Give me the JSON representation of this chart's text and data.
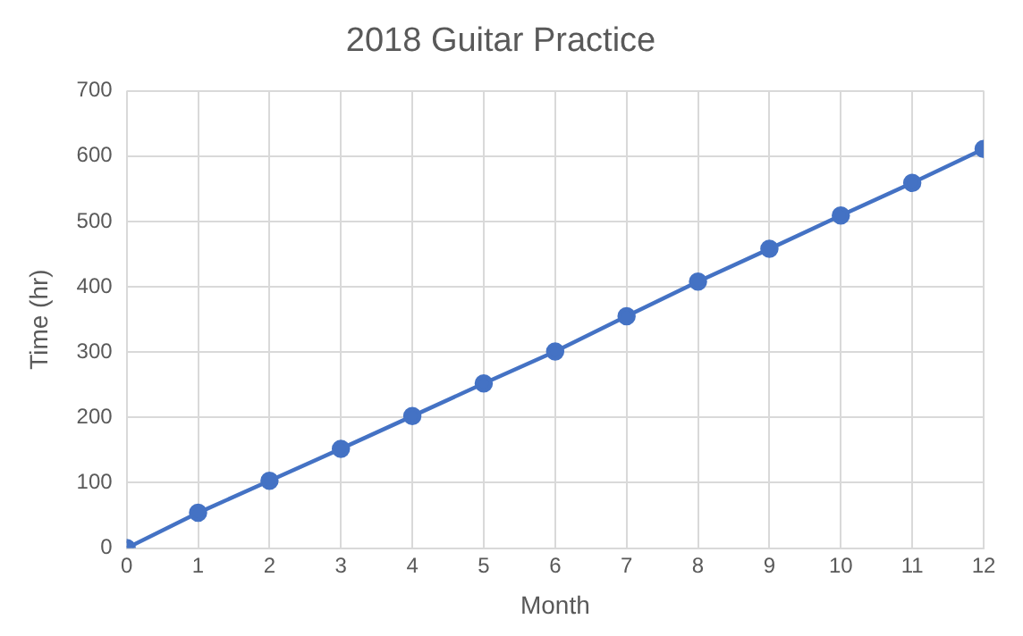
{
  "chart_data": {
    "type": "line",
    "title": "2018 Guitar Practice",
    "xlabel": "Month",
    "ylabel": "Time (hr)",
    "x": [
      0,
      1,
      2,
      3,
      4,
      5,
      6,
      7,
      8,
      9,
      10,
      11,
      12
    ],
    "series": [
      {
        "color": "#4472c4",
        "values": [
          0,
          54,
          103,
          152,
          202,
          252,
          301,
          355,
          408,
          458,
          509,
          559,
          611
        ]
      }
    ],
    "xlim": [
      0,
      12
    ],
    "xticks": [
      0,
      1,
      2,
      3,
      4,
      5,
      6,
      7,
      8,
      9,
      10,
      11,
      12
    ],
    "ylim": [
      0,
      700
    ],
    "yticks": [
      0,
      100,
      200,
      300,
      400,
      500,
      600,
      700
    ],
    "grid": true,
    "legend": false,
    "marker": "circle",
    "line_style": "solid"
  }
}
